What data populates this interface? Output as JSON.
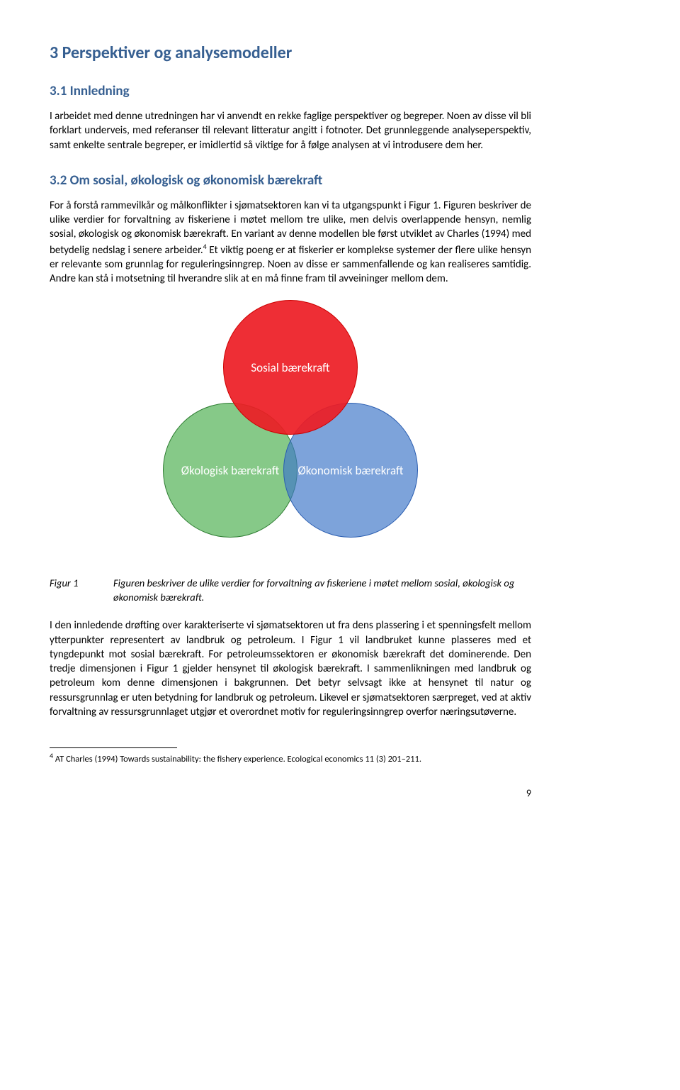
{
  "h1": "3  Perspektiver og analysemodeller",
  "h2a": "3.1  Innledning",
  "p1": "I arbeidet med denne utredningen har vi anvendt en rekke faglige perspektiver og begreper. Noen av disse vil bli forklart underveis, med referanser til relevant litteratur angitt i fotnoter. Det grunnleggende analyseperspektiv, samt enkelte sentrale begreper, er imidlertid så viktige for å følge analysen at vi introdusere dem her.",
  "h2b": "3.2  Om sosial, økologisk og økonomisk bærekraft",
  "p2a": "For å forstå rammevilkår og målkonflikter i sjømatsektoren kan vi ta utgangspunkt i Figur 1. Figuren beskriver de ulike verdier for forvaltning av fiskeriene i møtet mellom tre ulike, men delvis overlappende hensyn, nemlig sosial, økologisk og økonomisk bærekraft. En variant av denne modellen ble først utviklet av Charles (1994) med betydelig nedslag i senere arbeider.",
  "p2b": " Et viktig poeng er at fiskerier er komplekse systemer der flere ulike hensyn er relevante som grunnlag for reguleringsinngrep. Noen av disse er sammenfallende og kan realiseres samtidig. Andre kan stå i motsetning til hverandre slik at en må finne fram til avveininger mellom dem.",
  "venn": {
    "top": "Sosial bærekraft",
    "left": "Økologisk bærekraft",
    "right": "Økonomisk bærekraft",
    "colors": {
      "top": "#ed1c24",
      "left": "#4caf50",
      "right": "#3f78c8"
    }
  },
  "fig": {
    "label": "Figur 1",
    "text": "Figuren beskriver de ulike verdier for forvaltning av fiskeriene i møtet mellom sosial, økologisk og økonomisk bærekraft."
  },
  "p3": "I den innledende drøfting over karakteriserte vi sjømatsektoren ut fra dens plassering i et spenningsfelt mellom ytterpunkter representert av landbruk og petroleum. I Figur 1 vil landbruket kunne plasseres med et tyngdepunkt mot sosial bærekraft. For petroleumssektoren er økonomisk bærekraft det dominerende. Den tredje dimensjonen i Figur 1 gjelder hensynet til økologisk bærekraft. I sammenlikningen med landbruk og petroleum kom denne dimensjonen i bakgrunnen. Det betyr selvsagt ikke at hensynet til natur og ressursgrunnlag er uten betydning for landbruk og petroleum. Likevel er sjømatsektoren særpreget, ved at aktiv forvaltning av ressursgrunnlaget utgjør et overordnet motiv for reguleringsinngrep overfor næringsutøverne.",
  "footnote": {
    "num": "4",
    "text": " AT Charles (1994) Towards sustainability: the fishery experience. Ecological economics 11 (3) 201–211."
  },
  "pageNum": "9"
}
